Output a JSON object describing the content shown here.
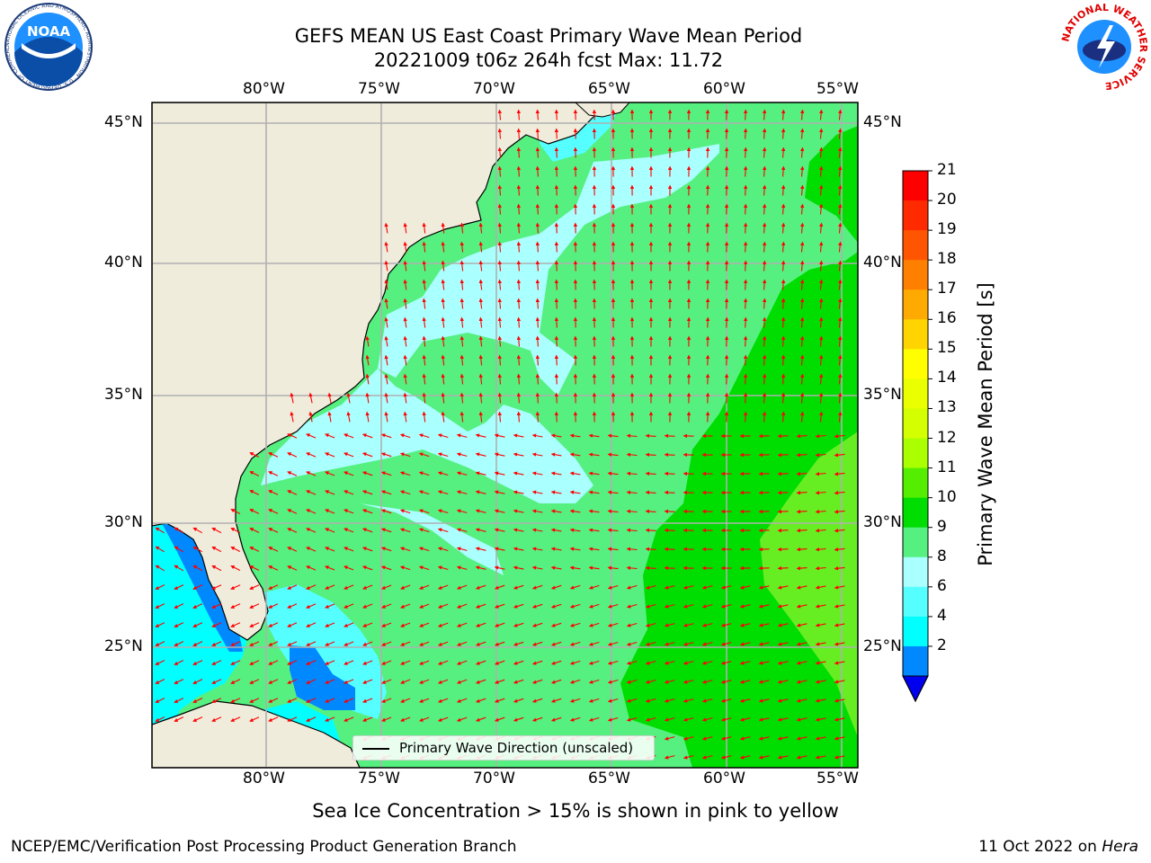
{
  "title_line1": "GEFS MEAN US East Coast Primary Wave Mean Period",
  "title_line2": "20221009 t06z 264h fcst   Max: 11.72",
  "lon_labels": [
    "80°W",
    "75°W",
    "70°W",
    "65°W",
    "60°W",
    "55°W"
  ],
  "lat_labels": [
    "45°N",
    "40°N",
    "35°N",
    "30°N",
    "25°N"
  ],
  "colorbar": {
    "label": "Primary Wave Mean Period [s]",
    "ticks": [
      "21",
      "20",
      "19",
      "18",
      "17",
      "16",
      "15",
      "14",
      "13",
      "12",
      "11",
      "10",
      "9",
      "8",
      "6",
      "4",
      "2"
    ],
    "colors": [
      "#ff0000",
      "#ff2a00",
      "#ff5500",
      "#ff7f00",
      "#ffaa00",
      "#ffd400",
      "#ffff00",
      "#eaff00",
      "#d4ff00",
      "#aaff00",
      "#55ee00",
      "#00dd00",
      "#55f080",
      "#aaffff",
      "#55ffff",
      "#00ffff",
      "#0088ff"
    ],
    "extend_color": "#0000ee"
  },
  "legend_label": "Primary Wave Direction (unscaled)",
  "footnote": "Sea Ice Concentration > 15% is shown in pink to yellow",
  "footer_left": "NCEP/EMC/Verification Post Processing Product Generation Branch",
  "footer_date": "11 Oct 2022 on",
  "footer_machine": "Hera",
  "logos": {
    "noaa_text": "NOAA",
    "noaa_ring_text": "NATIONAL OCEANIC AND ATMOSPHERIC ADMINISTRATION · U.S. DEPARTMENT OF COMMERCE",
    "nws_ring_text": "NATIONAL WEATHER SERVICE"
  },
  "colors": {
    "land": "#efecdc",
    "arrow": "#ff0000",
    "grid": "#b0b0b0"
  }
}
